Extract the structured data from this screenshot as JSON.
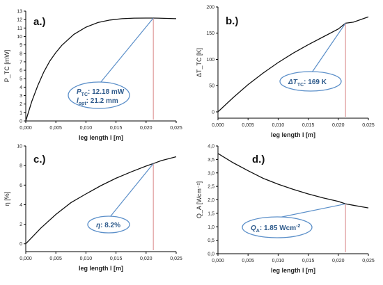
{
  "chart_data": [
    {
      "id": "a",
      "type": "line",
      "panel_label": "a.)",
      "ylabel": "P_TC [mW]",
      "xlim": [
        0,
        0.025
      ],
      "ylim": [
        0,
        13
      ],
      "x_ticks": [
        "0,000",
        "0,005",
        "0,010",
        "0,015",
        "0,020",
        "0,025"
      ],
      "y_ticks": [
        "0",
        "1",
        "2",
        "3",
        "4",
        "5",
        "6",
        "7",
        "8",
        "9",
        "10",
        "11",
        "12",
        "13"
      ],
      "x": [
        0.0,
        0.001,
        0.002,
        0.003,
        0.004,
        0.005,
        0.006,
        0.008,
        0.01,
        0.012,
        0.014,
        0.016,
        0.018,
        0.02,
        0.0212,
        0.022,
        0.024,
        0.025
      ],
      "y": [
        0.0,
        2.3,
        4.2,
        5.8,
        7.1,
        8.1,
        8.95,
        10.25,
        11.1,
        11.65,
        11.95,
        12.1,
        12.17,
        12.18,
        12.18,
        12.17,
        12.13,
        12.1
      ],
      "marker_x": 0.0212,
      "marker_y": 12.18,
      "annotation": {
        "line1_sym": "P",
        "line1_sub": "TC",
        "line1_text": ": 12.18 mW",
        "line2_sym": "l",
        "line2_sub": "opt",
        "line2_text": ": 21.2 mm"
      }
    },
    {
      "id": "b",
      "type": "line",
      "panel_label": "b.)",
      "ylabel": "ΔT_TC [K]",
      "xlim": [
        0,
        0.025
      ],
      "ylim": [
        -12,
        200
      ],
      "x_ticks": [
        "0,000",
        "0,005",
        "0,010",
        "0,015",
        "0,020",
        "0,025"
      ],
      "y_ticks": [
        "0",
        "50",
        "100",
        "150",
        "200"
      ],
      "x": [
        0.0,
        0.0025,
        0.005,
        0.0075,
        0.01,
        0.0125,
        0.015,
        0.0175,
        0.02,
        0.0212,
        0.0225,
        0.025
      ],
      "y": [
        0,
        27,
        52,
        74,
        94,
        112,
        128,
        143,
        158,
        169,
        171,
        181
      ],
      "marker_x": 0.0212,
      "marker_y": 169,
      "annotation": {
        "line1_sym": "ΔT",
        "line1_sub": "TC",
        "line1_text": ": 169 K"
      }
    },
    {
      "id": "c",
      "type": "line",
      "panel_label": "c.)",
      "ylabel": "η [%]",
      "xlim": [
        0,
        0.025
      ],
      "ylim": [
        -0.8,
        10
      ],
      "x_ticks": [
        "0,000",
        "0,005",
        "0,010",
        "0,015",
        "0,020",
        "0,025"
      ],
      "y_ticks": [
        "0",
        "2",
        "4",
        "6",
        "8",
        "10"
      ],
      "x": [
        0.0,
        0.0025,
        0.005,
        0.0075,
        0.01,
        0.0125,
        0.015,
        0.0175,
        0.02,
        0.0212,
        0.0225,
        0.025
      ],
      "y": [
        0.0,
        1.6,
        3.0,
        4.2,
        5.1,
        5.95,
        6.7,
        7.35,
        7.95,
        8.2,
        8.5,
        8.9
      ],
      "marker_x": 0.0212,
      "marker_y": 8.2,
      "annotation": {
        "line1_sym": "η",
        "line1_sub": "",
        "line1_text": ": 8.2%"
      }
    },
    {
      "id": "d",
      "type": "line",
      "panel_label": "d.)",
      "ylabel": "Q_A [Wcm⁻²]",
      "xlim": [
        0,
        0.025
      ],
      "ylim": [
        0,
        4.0
      ],
      "x_ticks": [
        "0,000",
        "0,005",
        "0,010",
        "0,015",
        "0,020",
        "0,025"
      ],
      "y_ticks": [
        "0,0",
        "0,5",
        "1,0",
        "1,5",
        "2,0",
        "2,5",
        "3,0",
        "3,5",
        "4,0"
      ],
      "x": [
        0.0,
        0.0025,
        0.005,
        0.0075,
        0.01,
        0.0125,
        0.015,
        0.0175,
        0.02,
        0.0212,
        0.0225,
        0.025
      ],
      "y": [
        3.72,
        3.38,
        3.08,
        2.8,
        2.58,
        2.39,
        2.22,
        2.07,
        1.94,
        1.85,
        1.8,
        1.7
      ],
      "marker_x": 0.0212,
      "marker_y": 1.85,
      "annotation": {
        "line1_sym": "Q",
        "line1_sub": "A",
        "line1_text": ": 1.85 Wcm",
        "line1_sup": "-2"
      }
    }
  ],
  "xlabel": "leg length l [m]"
}
